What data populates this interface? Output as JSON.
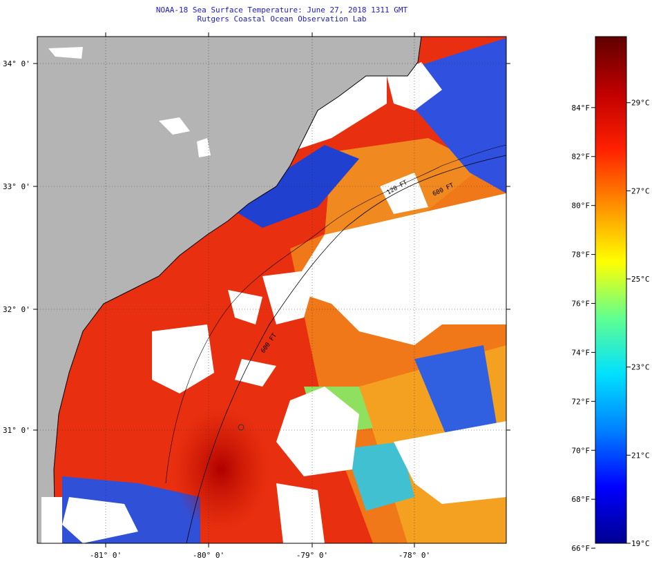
{
  "header": {
    "title_line1": "NOAA-18 Sea Surface Temperature:  June 27, 2018 1311 GMT",
    "title_line2": "Rutgers Coastal Ocean Observation Lab"
  },
  "map": {
    "lat_labels": [
      "34° 0'",
      "33° 0'",
      "32° 0'",
      "31° 0'"
    ],
    "lon_labels": [
      "-81° 0'",
      "-80° 0'",
      "-79° 0'",
      "-78° 0'"
    ],
    "contour_labels": [
      "120 FT",
      "600 FT",
      "600 FT"
    ],
    "colors": {
      "land": "#b4b4b4",
      "cloud": "#ffffff",
      "coast": "#000000"
    }
  },
  "colorbar": {
    "f_labels": [
      "84°F",
      "82°F",
      "80°F",
      "78°F",
      "76°F",
      "74°F",
      "72°F",
      "70°F",
      "68°F",
      "66°F"
    ],
    "c_labels": [
      "29°C",
      "27°C",
      "25°C",
      "23°C",
      "21°C",
      "19°C"
    ],
    "colors": [
      "#000090",
      "#0000ff",
      "#0080ff",
      "#00e0ff",
      "#60ff90",
      "#ffff00",
      "#ff9000",
      "#ff2000",
      "#c00000",
      "#600000"
    ]
  }
}
